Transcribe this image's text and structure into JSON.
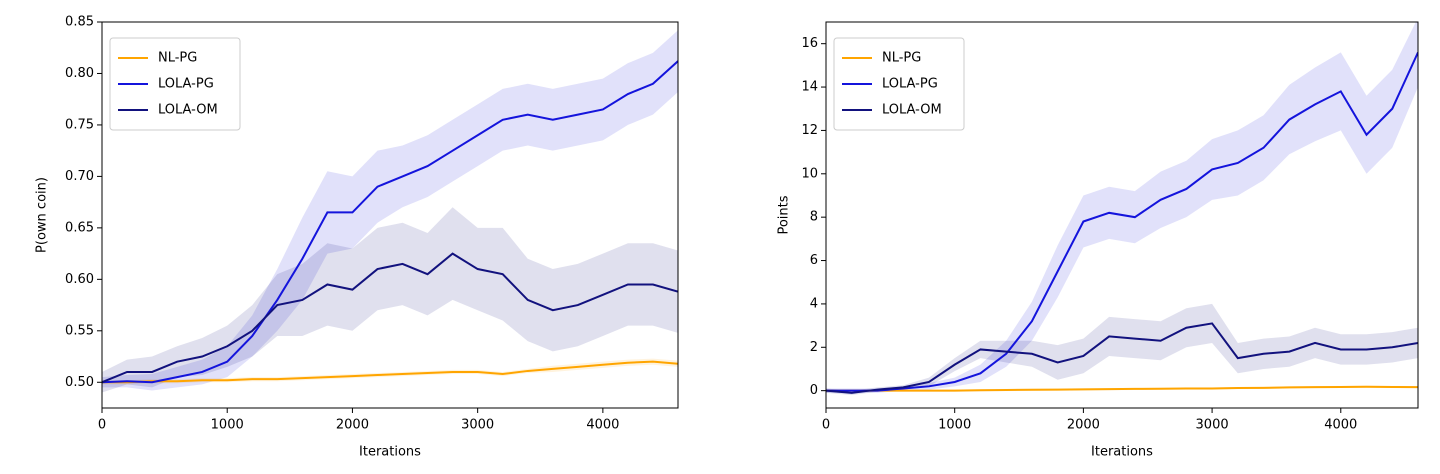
{
  "chart_data": [
    {
      "type": "line",
      "xlabel": "Iterations",
      "ylabel": "P(own coin)",
      "legend": "upper left",
      "x": [
        0,
        200,
        400,
        600,
        800,
        1000,
        1200,
        1400,
        1600,
        1800,
        2000,
        2200,
        2400,
        2600,
        2800,
        3000,
        3200,
        3400,
        3600,
        3800,
        4000,
        4200,
        4400,
        4600
      ],
      "xlim": [
        0,
        4600
      ],
      "ylim": [
        0.475,
        0.85
      ],
      "xticks": [
        0,
        1000,
        2000,
        3000,
        4000
      ],
      "yticks": [
        {
          "value": 0.5,
          "label": "0.50"
        },
        0.55,
        {
          "value": 0.6,
          "label": "0.60"
        },
        0.65,
        {
          "value": 0.7,
          "label": "0.70"
        },
        0.75,
        {
          "value": 0.8,
          "label": "0.80"
        },
        0.85
      ],
      "series": [
        {
          "name": "NL-PG",
          "color": "#ffa500",
          "values": [
            0.5,
            0.5,
            0.501,
            0.501,
            0.502,
            0.502,
            0.503,
            0.503,
            0.504,
            0.505,
            0.506,
            0.507,
            0.508,
            0.509,
            0.51,
            0.51,
            0.508,
            0.511,
            0.513,
            0.515,
            0.517,
            0.519,
            0.52,
            0.518
          ],
          "errors": [
            0.002,
            0.002,
            0.002,
            0.002,
            0.002,
            0.002,
            0.002,
            0.002,
            0.002,
            0.002,
            0.002,
            0.002,
            0.002,
            0.002,
            0.002,
            0.002,
            0.002,
            0.002,
            0.003,
            0.003,
            0.003,
            0.003,
            0.003,
            0.003
          ]
        },
        {
          "name": "LOLA-PG",
          "color": "#1414dc",
          "values": [
            0.5,
            0.501,
            0.5,
            0.505,
            0.51,
            0.52,
            0.545,
            0.58,
            0.62,
            0.665,
            0.665,
            0.69,
            0.7,
            0.71,
            0.725,
            0.74,
            0.755,
            0.76,
            0.755,
            0.76,
            0.765,
            0.78,
            0.79,
            0.812
          ],
          "errors": [
            0.005,
            0.006,
            0.008,
            0.01,
            0.012,
            0.015,
            0.02,
            0.03,
            0.04,
            0.04,
            0.035,
            0.035,
            0.03,
            0.03,
            0.03,
            0.03,
            0.03,
            0.03,
            0.03,
            0.03,
            0.03,
            0.03,
            0.03,
            0.03
          ]
        },
        {
          "name": "LOLA-OM",
          "color": "#12127e",
          "values": [
            0.5,
            0.51,
            0.51,
            0.52,
            0.525,
            0.535,
            0.55,
            0.575,
            0.58,
            0.595,
            0.59,
            0.61,
            0.615,
            0.605,
            0.625,
            0.61,
            0.605,
            0.58,
            0.57,
            0.575,
            0.585,
            0.595,
            0.595,
            0.588
          ],
          "errors": [
            0.01,
            0.012,
            0.015,
            0.015,
            0.018,
            0.02,
            0.025,
            0.03,
            0.035,
            0.04,
            0.04,
            0.04,
            0.04,
            0.04,
            0.045,
            0.04,
            0.045,
            0.04,
            0.04,
            0.04,
            0.04,
            0.04,
            0.04,
            0.04
          ]
        }
      ]
    },
    {
      "type": "line",
      "xlabel": "Iterations",
      "ylabel": "Points",
      "legend": "upper left",
      "x": [
        0,
        200,
        400,
        600,
        800,
        1000,
        1200,
        1400,
        1600,
        1800,
        2000,
        2200,
        2400,
        2600,
        2800,
        3000,
        3200,
        3400,
        3600,
        3800,
        4000,
        4200,
        4400,
        4600
      ],
      "xlim": [
        0,
        4600
      ],
      "ylim": [
        -0.8,
        17
      ],
      "xticks": [
        0,
        1000,
        2000,
        3000,
        4000
      ],
      "yticks": [
        0,
        2,
        4,
        6,
        8,
        10,
        12,
        14,
        16
      ],
      "series": [
        {
          "name": "NL-PG",
          "color": "#ffa500",
          "values": [
            0,
            0,
            0,
            0,
            0,
            0,
            0.02,
            0.03,
            0.04,
            0.05,
            0.06,
            0.07,
            0.08,
            0.09,
            0.1,
            0.1,
            0.12,
            0.13,
            0.15,
            0.16,
            0.17,
            0.18,
            0.17,
            0.16
          ],
          "errors": [
            0.05,
            0.05,
            0.05,
            0.05,
            0.05,
            0.05,
            0.05,
            0.05,
            0.05,
            0.05,
            0.05,
            0.05,
            0.05,
            0.05,
            0.05,
            0.05,
            0.05,
            0.05,
            0.05,
            0.05,
            0.05,
            0.05,
            0.05,
            0.05
          ]
        },
        {
          "name": "LOLA-PG",
          "color": "#1414dc",
          "values": [
            0,
            0,
            0,
            0.1,
            0.2,
            0.4,
            0.8,
            1.7,
            3.2,
            5.5,
            7.8,
            8.2,
            8,
            8.8,
            9.3,
            10.2,
            10.5,
            11.2,
            12.5,
            13.2,
            13.8,
            11.8,
            13,
            15.6
          ],
          "errors": [
            0.1,
            0.1,
            0.1,
            0.1,
            0.15,
            0.2,
            0.4,
            0.6,
            0.9,
            1.2,
            1.2,
            1.2,
            1.2,
            1.3,
            1.3,
            1.4,
            1.5,
            1.5,
            1.6,
            1.7,
            1.8,
            1.8,
            1.8,
            1.6
          ]
        },
        {
          "name": "LOLA-OM",
          "color": "#12127e",
          "values": [
            0,
            -0.1,
            0.05,
            0.15,
            0.4,
            1.2,
            1.9,
            1.8,
            1.7,
            1.3,
            1.6,
            2.5,
            2.4,
            2.3,
            2.9,
            3.1,
            1.5,
            1.7,
            1.8,
            2.2,
            1.9,
            1.9,
            2,
            2.2
          ],
          "errors": [
            0.1,
            0.1,
            0.1,
            0.1,
            0.2,
            0.3,
            0.4,
            0.5,
            0.6,
            0.8,
            0.8,
            0.9,
            0.9,
            0.9,
            0.9,
            0.9,
            0.7,
            0.7,
            0.7,
            0.7,
            0.7,
            0.7,
            0.7,
            0.7
          ]
        }
      ]
    }
  ]
}
